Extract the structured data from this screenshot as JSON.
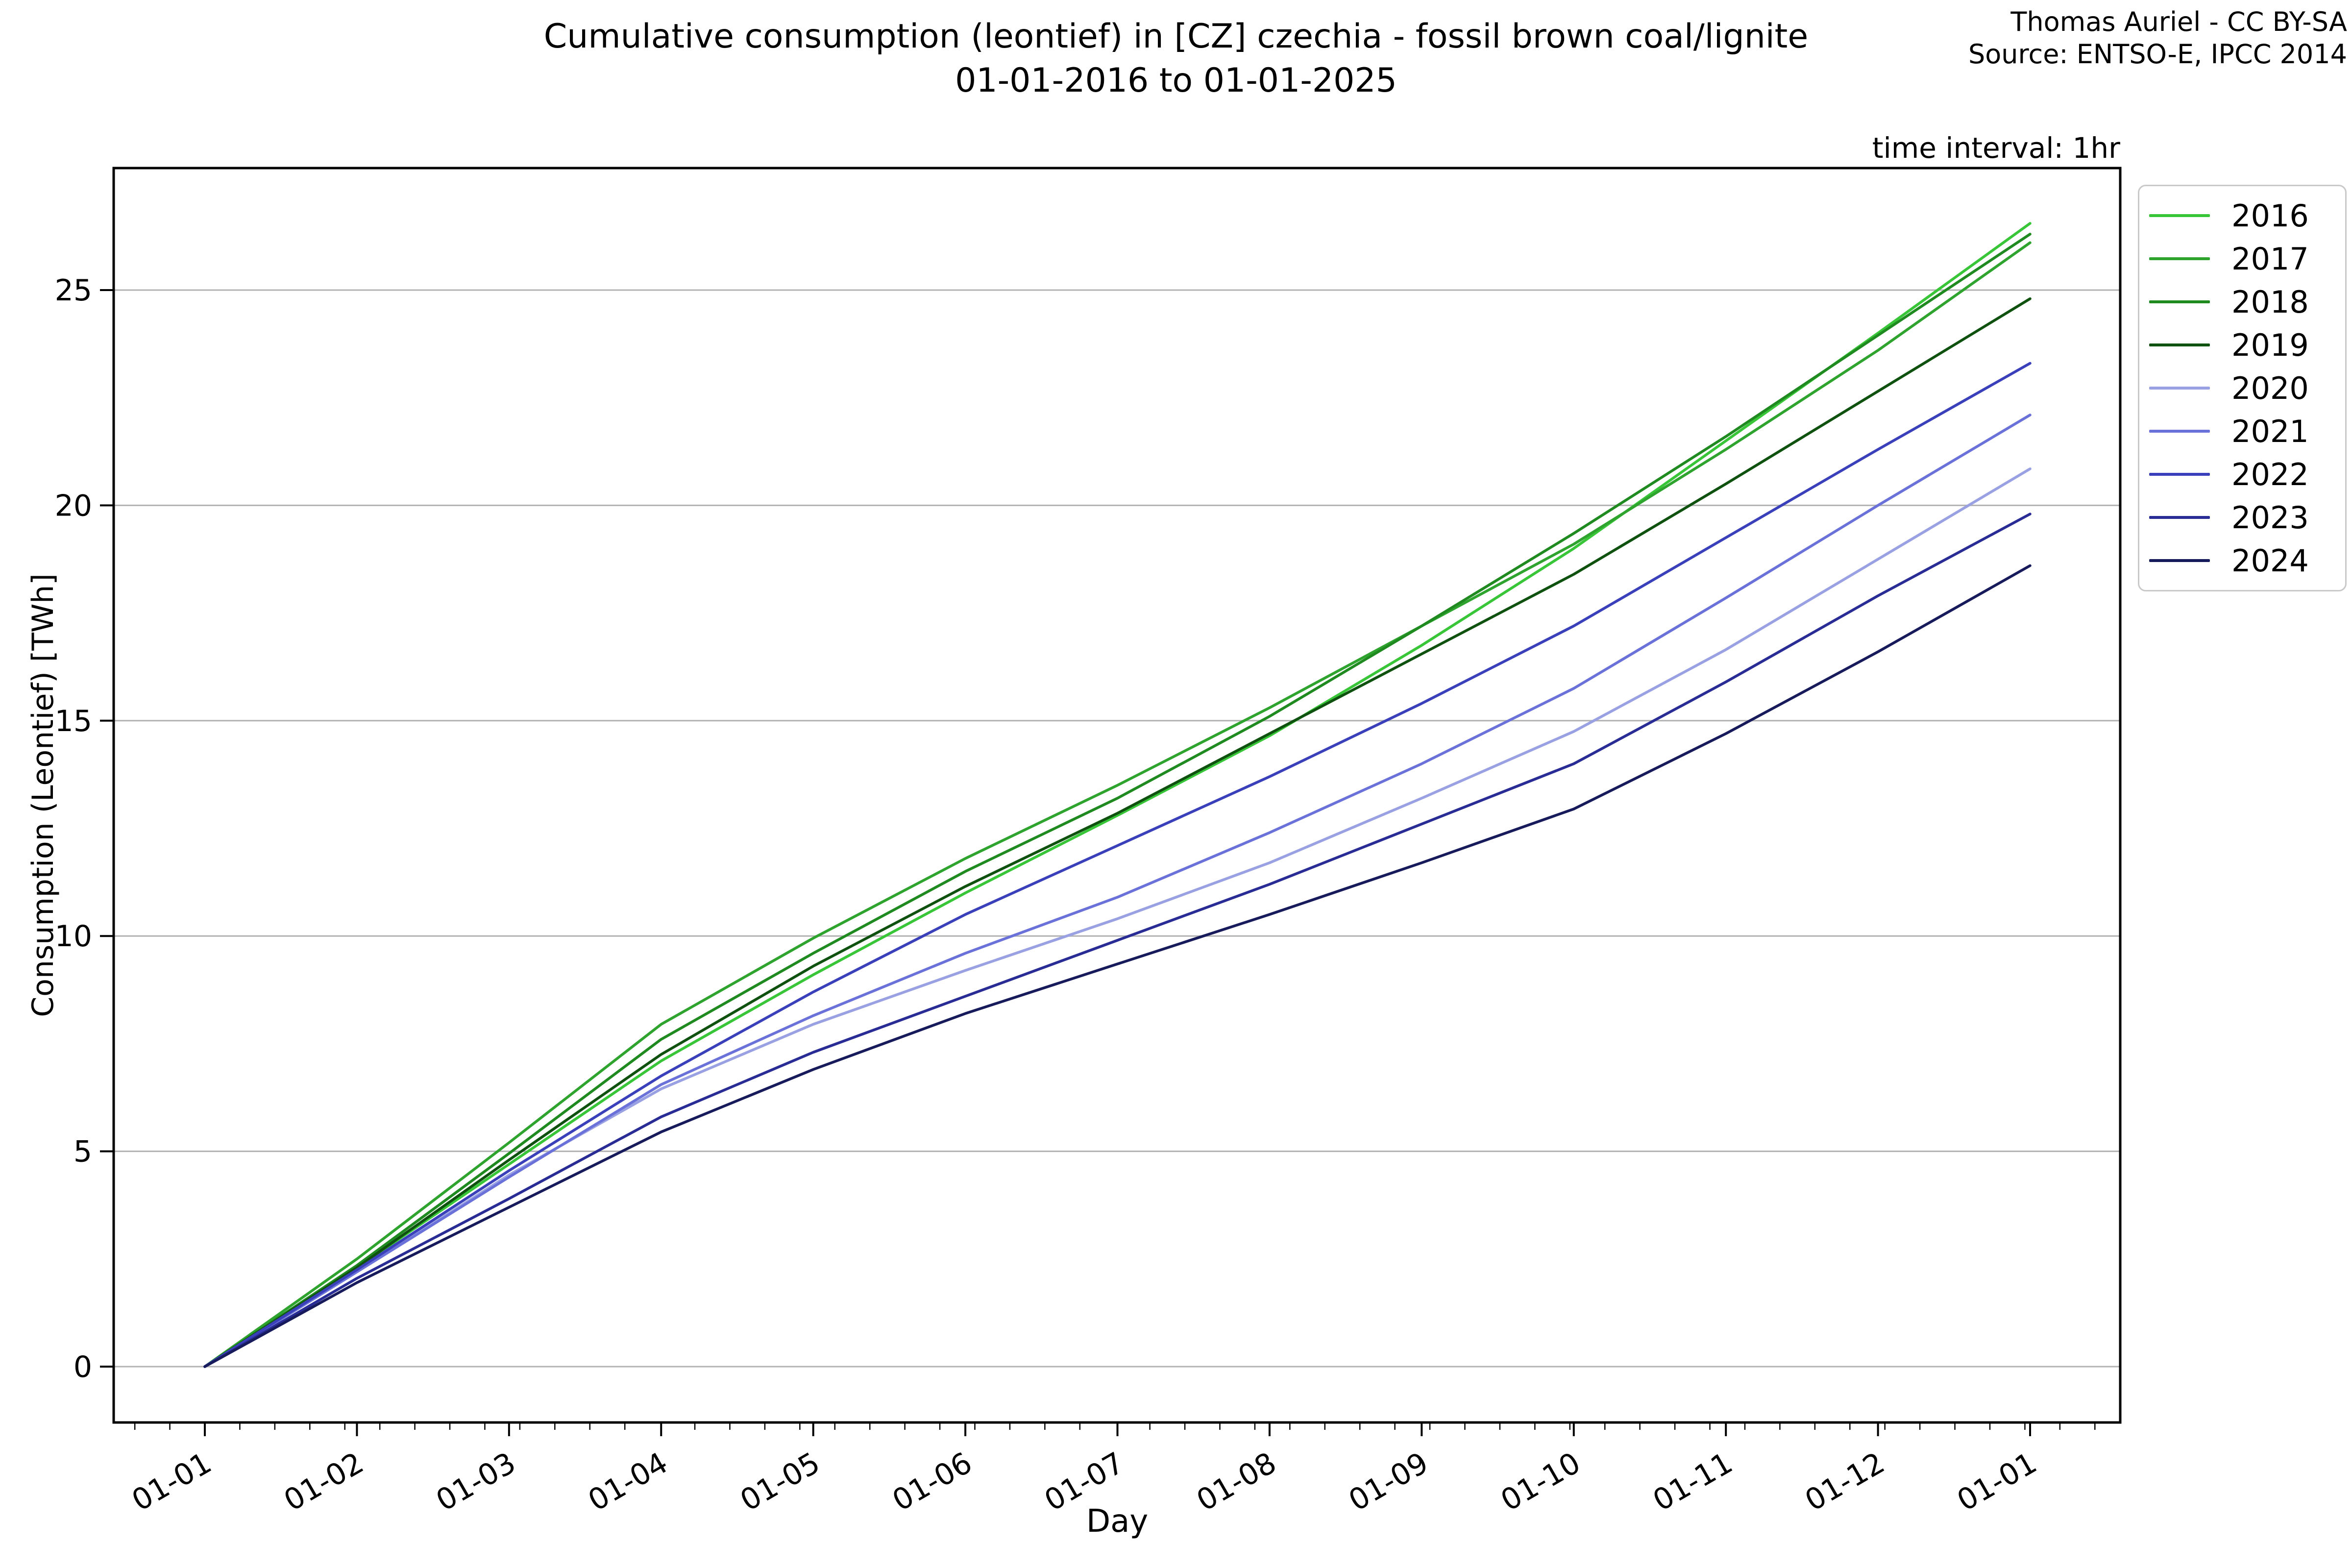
{
  "header": {
    "title_line1": "Cumulative consumption (leontief) in [CZ] czechia - fossil brown coal/lignite",
    "title_line2": "01-01-2016 to 01-01-2025",
    "credit_line1": "Thomas Auriel - CC BY-SA",
    "credit_line2": "Source: ENTSO-E, IPCC 2014",
    "note": "time interval: 1hr"
  },
  "chart_data": {
    "type": "line",
    "title": "Cumulative consumption (leontief) in [CZ] czechia - fossil brown coal/lignite 01-01-2016 to 01-01-2025",
    "xlabel": "Day",
    "ylabel": "Consumption (Leontief) [TWh]",
    "x_tick_labels": [
      "01-01",
      "01-02",
      "01-03",
      "01-04",
      "01-05",
      "01-06",
      "01-07",
      "01-08",
      "01-09",
      "01-10",
      "01-11",
      "01-12",
      "01-01"
    ],
    "y_ticks": [
      0,
      5,
      10,
      15,
      20,
      25
    ],
    "ylim": [
      -1.3,
      27.8
    ],
    "grid": "horizontal",
    "grid_color": "#b2b2b2",
    "legend_position": "outside-upper-right",
    "units": "TWh",
    "series": [
      {
        "name": "2016",
        "color": "#38C538",
        "values": [
          0,
          2.3,
          4.7,
          7.1,
          9.1,
          11.0,
          12.8,
          14.65,
          16.75,
          19.0,
          21.5,
          24.0,
          26.55
        ]
      },
      {
        "name": "2017",
        "color": "#2EA32E",
        "values": [
          0,
          2.5,
          5.2,
          7.95,
          9.95,
          11.8,
          13.5,
          15.3,
          17.2,
          19.1,
          21.3,
          23.6,
          26.1
        ]
      },
      {
        "name": "2018",
        "color": "#1F8A1F",
        "values": [
          0,
          2.35,
          4.95,
          7.6,
          9.6,
          11.5,
          13.2,
          15.1,
          17.2,
          19.35,
          21.6,
          23.95,
          26.3
        ]
      },
      {
        "name": "2019",
        "color": "#0F520F",
        "values": [
          0,
          2.3,
          4.8,
          7.25,
          9.3,
          11.15,
          12.85,
          14.7,
          16.55,
          18.4,
          20.5,
          22.65,
          24.8
        ]
      },
      {
        "name": "2020",
        "color": "#9AA1E3",
        "values": [
          0,
          2.2,
          4.45,
          6.45,
          7.95,
          9.2,
          10.4,
          11.7,
          13.2,
          14.75,
          16.65,
          18.75,
          20.85
        ]
      },
      {
        "name": "2021",
        "color": "#6A71D8",
        "values": [
          0,
          2.2,
          4.4,
          6.55,
          8.15,
          9.6,
          10.9,
          12.4,
          14.0,
          15.75,
          17.85,
          20.0,
          22.1
        ]
      },
      {
        "name": "2022",
        "color": "#3A3FBA",
        "values": [
          0,
          2.25,
          4.55,
          6.75,
          8.7,
          10.5,
          12.1,
          13.7,
          15.4,
          17.2,
          19.25,
          21.3,
          23.3
        ]
      },
      {
        "name": "2023",
        "color": "#282C94",
        "values": [
          0,
          2.05,
          3.9,
          5.8,
          7.3,
          8.6,
          9.9,
          11.2,
          12.6,
          14.0,
          15.9,
          17.9,
          19.8
        ]
      },
      {
        "name": "2024",
        "color": "#171A5B",
        "values": [
          0,
          1.95,
          3.7,
          5.45,
          6.9,
          8.2,
          9.35,
          10.5,
          11.7,
          12.95,
          14.7,
          16.6,
          18.6
        ]
      }
    ]
  }
}
